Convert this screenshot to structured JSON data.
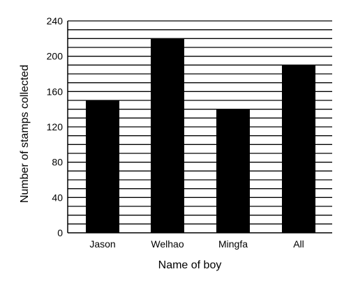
{
  "chart_data": {
    "type": "bar",
    "title": "",
    "xlabel": "Name of boy",
    "ylabel": "Number of stamps collected",
    "categories": [
      "Jason",
      "Welhao",
      "Mingfa",
      "All"
    ],
    "values": [
      150,
      220,
      140,
      190
    ],
    "ylim": [
      0,
      240
    ],
    "yticks": [
      0,
      40,
      80,
      120,
      160,
      200,
      240
    ],
    "minor_gridline_step": 10,
    "grid": true,
    "colors": {
      "bar": "#000000",
      "grid": "#000000",
      "background": "#ffffff"
    }
  }
}
